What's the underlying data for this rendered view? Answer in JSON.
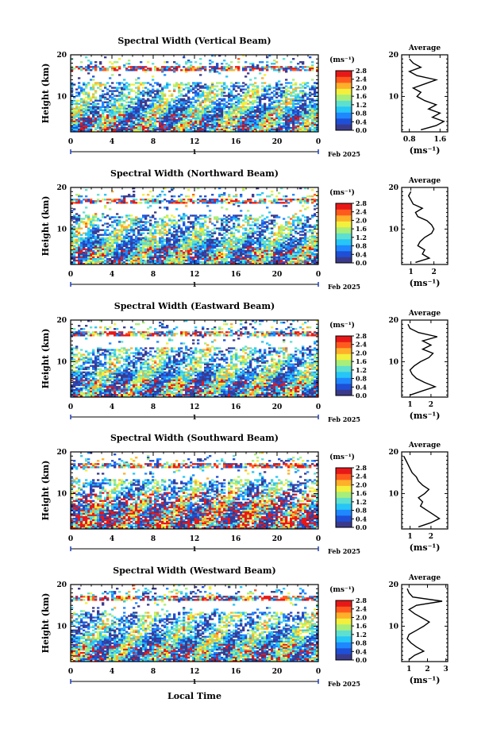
{
  "figure": {
    "x_axis_label": "Local Time",
    "date_label": "Feb 2025",
    "day_label": "1",
    "y_axis_label": "Height (km)",
    "colorbar_unit": "(ms⁻¹)",
    "avg_title": "Average",
    "avg_unit": "(ms⁻¹)"
  },
  "colorscale": {
    "min": 0.0,
    "max": 2.8,
    "ticks": [
      "0.0",
      "0.4",
      "0.8",
      "1.2",
      "1.6",
      "2.0",
      "2.4",
      "2.8"
    ],
    "colors": [
      "#3a3a8c",
      "#1f4fd6",
      "#1f88ff",
      "#26c6f6",
      "#5de0d0",
      "#a8ee7a",
      "#f2f03c",
      "#ffb02a",
      "#ff5a1e",
      "#e81818"
    ]
  },
  "chart_data": [
    {
      "type": "heatmap",
      "title": "Spectral Width (Vertical Beam)",
      "x_ticks": [
        "0",
        "4",
        "8",
        "12",
        "16",
        "20",
        "0"
      ],
      "xlim": [
        0,
        24
      ],
      "y_ticks": [
        "10",
        "20"
      ],
      "ylim": [
        1.5,
        20
      ],
      "average_profile": {
        "title": "Average",
        "x_ticks": [
          "0.8",
          "1.6"
        ],
        "xlim": [
          0.6,
          1.8
        ],
        "points": [
          [
            1.1,
            2
          ],
          [
            1.5,
            3
          ],
          [
            1.7,
            4
          ],
          [
            1.4,
            5
          ],
          [
            1.6,
            6
          ],
          [
            1.3,
            7
          ],
          [
            1.5,
            8
          ],
          [
            1.2,
            9
          ],
          [
            1.0,
            10
          ],
          [
            1.1,
            11
          ],
          [
            0.9,
            12
          ],
          [
            1.2,
            13
          ],
          [
            1.5,
            14
          ],
          [
            1.0,
            15
          ],
          [
            0.8,
            16
          ],
          [
            1.1,
            17
          ],
          [
            0.9,
            18
          ],
          [
            0.8,
            19
          ]
        ]
      }
    },
    {
      "type": "heatmap",
      "title": "Spectral Width (Northward Beam)",
      "x_ticks": [
        "0",
        "4",
        "8",
        "12",
        "16",
        "20",
        "0"
      ],
      "xlim": [
        0,
        24
      ],
      "y_ticks": [
        "10",
        "20"
      ],
      "ylim": [
        1.5,
        20
      ],
      "average_profile": {
        "title": "Average",
        "x_ticks": [
          "1",
          "2"
        ],
        "xlim": [
          0.6,
          2.6
        ],
        "points": [
          [
            1.2,
            2
          ],
          [
            1.8,
            3
          ],
          [
            1.5,
            4
          ],
          [
            1.6,
            5
          ],
          [
            1.3,
            6
          ],
          [
            1.4,
            7
          ],
          [
            1.6,
            8
          ],
          [
            1.9,
            9
          ],
          [
            2.0,
            10
          ],
          [
            1.9,
            11
          ],
          [
            1.7,
            12
          ],
          [
            1.3,
            13
          ],
          [
            1.2,
            14
          ],
          [
            1.5,
            15
          ],
          [
            1.1,
            16
          ],
          [
            1.0,
            17
          ],
          [
            0.9,
            18
          ],
          [
            1.0,
            19
          ]
        ]
      }
    },
    {
      "type": "heatmap",
      "title": "Spectral Width (Eastward Beam)",
      "x_ticks": [
        "0",
        "4",
        "8",
        "12",
        "16",
        "20",
        "0"
      ],
      "xlim": [
        0,
        24
      ],
      "y_ticks": [
        "10",
        "20"
      ],
      "ylim": [
        1.5,
        20
      ],
      "average_profile": {
        "title": "Average",
        "x_ticks": [
          "1",
          "2"
        ],
        "xlim": [
          0.6,
          2.8
        ],
        "points": [
          [
            1.0,
            2
          ],
          [
            1.6,
            3
          ],
          [
            2.2,
            4
          ],
          [
            1.7,
            5
          ],
          [
            1.3,
            6
          ],
          [
            1.1,
            7
          ],
          [
            1.0,
            8
          ],
          [
            1.2,
            9
          ],
          [
            1.5,
            10
          ],
          [
            1.9,
            11
          ],
          [
            2.1,
            12
          ],
          [
            1.6,
            13
          ],
          [
            2.0,
            14
          ],
          [
            1.6,
            15
          ],
          [
            2.3,
            16
          ],
          [
            1.4,
            17
          ],
          [
            1.0,
            18
          ],
          [
            0.9,
            19
          ]
        ]
      }
    },
    {
      "type": "heatmap",
      "title": "Spectral Width (Southward Beam)",
      "x_ticks": [
        "0",
        "4",
        "8",
        "12",
        "16",
        "20",
        "0"
      ],
      "xlim": [
        0,
        24
      ],
      "y_ticks": [
        "10",
        "20"
      ],
      "ylim": [
        1.5,
        20
      ],
      "average_profile": {
        "title": "Average",
        "x_ticks": [
          "1",
          "2"
        ],
        "xlim": [
          0.6,
          2.8
        ],
        "points": [
          [
            1.4,
            2
          ],
          [
            2.0,
            3
          ],
          [
            2.4,
            4
          ],
          [
            2.1,
            5
          ],
          [
            1.8,
            6
          ],
          [
            1.5,
            7
          ],
          [
            1.6,
            8
          ],
          [
            1.4,
            9
          ],
          [
            1.7,
            10
          ],
          [
            1.9,
            11
          ],
          [
            1.6,
            12
          ],
          [
            1.4,
            13
          ],
          [
            1.3,
            14
          ],
          [
            1.1,
            15
          ],
          [
            1.0,
            16
          ],
          [
            0.9,
            17
          ],
          [
            0.8,
            18
          ],
          [
            0.7,
            19
          ]
        ]
      }
    },
    {
      "type": "heatmap",
      "title": "Spectral Width (Westward Beam)",
      "x_ticks": [
        "0",
        "4",
        "8",
        "12",
        "16",
        "20",
        "0"
      ],
      "xlim": [
        0,
        24
      ],
      "y_ticks": [
        "10",
        "20"
      ],
      "ylim": [
        1.5,
        20
      ],
      "average_profile": {
        "title": "Average",
        "x_ticks": [
          "1",
          "2",
          "3"
        ],
        "xlim": [
          0.6,
          3.1
        ],
        "points": [
          [
            1.0,
            2
          ],
          [
            1.3,
            3
          ],
          [
            1.8,
            4
          ],
          [
            1.4,
            5
          ],
          [
            1.1,
            6
          ],
          [
            0.9,
            7
          ],
          [
            1.0,
            8
          ],
          [
            1.4,
            9
          ],
          [
            1.8,
            10
          ],
          [
            2.1,
            11
          ],
          [
            1.7,
            12
          ],
          [
            1.3,
            13
          ],
          [
            1.0,
            14
          ],
          [
            1.4,
            15
          ],
          [
            2.8,
            16
          ],
          [
            1.2,
            17
          ],
          [
            1.0,
            18
          ],
          [
            0.9,
            19
          ]
        ]
      }
    }
  ]
}
